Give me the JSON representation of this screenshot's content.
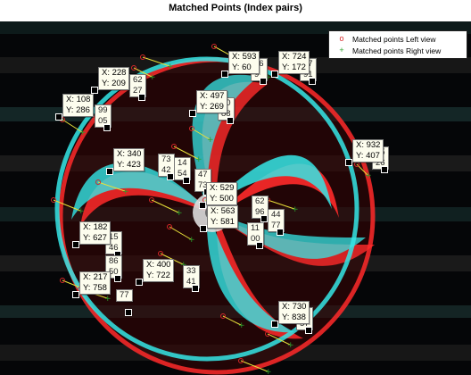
{
  "title": "Matched Points (Index pairs)",
  "legend": {
    "left_label": "Matched points Left view",
    "right_label": "Matched points Right view",
    "left_symbol": "o",
    "right_symbol": "+",
    "left_color": "#d62728",
    "right_color": "#2ca02c"
  },
  "colors": {
    "figure_background": "#ffffff",
    "image_background": "#050608",
    "datatip_background": "#fdfdee",
    "left_view_channel": "#ff2a2a",
    "right_view_channel": "#35e6e6"
  },
  "datatips": [
    {
      "x": "X: 228",
      "y": "Y: 209"
    },
    {
      "x": "X: 108",
      "y": "Y: 286"
    },
    {
      "x": "X: 593",
      "y": "Y: 60"
    },
    {
      "x": "X: 724",
      "y": "Y: 172"
    },
    {
      "x": "X: 497",
      "y": "Y: 269"
    },
    {
      "x": "X: 932",
      "y": "Y: 407"
    },
    {
      "x": "X: 340",
      "y": "Y: 423"
    },
    {
      "x": "X: 529",
      "y": "Y: 500"
    },
    {
      "x": "X: 563",
      "y": "Y: 581"
    },
    {
      "x": "X: 182",
      "y": "Y: 627"
    },
    {
      "x": "X: 217",
      "y": "Y: 758"
    },
    {
      "x": "X: 400",
      "y": "Y: 722"
    },
    {
      "x": "X: 730",
      "y": "Y: 838"
    }
  ],
  "partial_datatips": [
    {
      "x": "62",
      "y": "27"
    },
    {
      "x": "99",
      "y": "05"
    },
    {
      "x": "26",
      "y": "9"
    },
    {
      "x": "57",
      "y": "91"
    },
    {
      "x": "30",
      "y": "88"
    },
    {
      "x": "35",
      "y": "26"
    },
    {
      "x": "73",
      "y": "42"
    },
    {
      "x": "14",
      "y": "54"
    },
    {
      "x": "47",
      "y": "73"
    },
    {
      "x": "62",
      "y": "96"
    },
    {
      "x": "44",
      "y": "77"
    },
    {
      "x": "11",
      "y": "00"
    },
    {
      "x": "15",
      "y": "46"
    },
    {
      "x": "86",
      "y": "50"
    },
    {
      "x": "77",
      "y": ""
    },
    {
      "x": "33",
      "y": "41"
    },
    {
      "x": "53",
      "y": "57"
    }
  ]
}
